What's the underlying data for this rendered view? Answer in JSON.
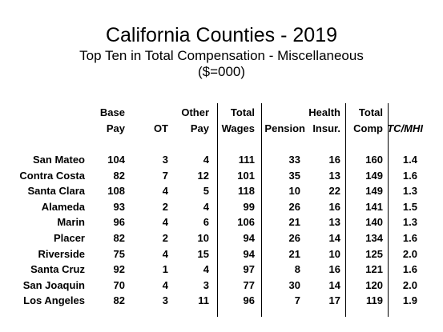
{
  "title": "California Counties - 2019",
  "subtitle": "Top Ten in Total Compensation - Miscellaneous",
  "units": "($=000)",
  "headers": {
    "base_line1": "Base",
    "base_line2": "Pay",
    "ot": "OT",
    "other_line1": "Other",
    "other_line2": "Pay",
    "wages_line1": "Total",
    "wages_line2": "Wages",
    "pension": "Pension",
    "health_line1": "Health",
    "health_line2": "Insur.",
    "comp_line1": "Total",
    "comp_line2": "Comp",
    "tcmhi": "TC/MHI"
  },
  "rows": [
    {
      "county": "San Mateo",
      "base": "104",
      "ot": "3",
      "other": "4",
      "wages": "111",
      "pension": "33",
      "health": "16",
      "comp": "160",
      "tcmhi": "1.4"
    },
    {
      "county": "Contra Costa",
      "base": "82",
      "ot": "7",
      "other": "12",
      "wages": "101",
      "pension": "35",
      "health": "13",
      "comp": "149",
      "tcmhi": "1.6"
    },
    {
      "county": "Santa Clara",
      "base": "108",
      "ot": "4",
      "other": "5",
      "wages": "118",
      "pension": "10",
      "health": "22",
      "comp": "149",
      "tcmhi": "1.3"
    },
    {
      "county": "Alameda",
      "base": "93",
      "ot": "2",
      "other": "4",
      "wages": "99",
      "pension": "26",
      "health": "16",
      "comp": "141",
      "tcmhi": "1.5"
    },
    {
      "county": "Marin",
      "base": "96",
      "ot": "4",
      "other": "6",
      "wages": "106",
      "pension": "21",
      "health": "13",
      "comp": "140",
      "tcmhi": "1.3"
    },
    {
      "county": "Placer",
      "base": "82",
      "ot": "2",
      "other": "10",
      "wages": "94",
      "pension": "26",
      "health": "14",
      "comp": "134",
      "tcmhi": "1.6"
    },
    {
      "county": "Riverside",
      "base": "75",
      "ot": "4",
      "other": "15",
      "wages": "94",
      "pension": "21",
      "health": "10",
      "comp": "125",
      "tcmhi": "2.0"
    },
    {
      "county": "Santa Cruz",
      "base": "92",
      "ot": "1",
      "other": "4",
      "wages": "97",
      "pension": "8",
      "health": "16",
      "comp": "121",
      "tcmhi": "1.6"
    },
    {
      "county": "San Joaquin",
      "base": "70",
      "ot": "4",
      "other": "3",
      "wages": "77",
      "pension": "30",
      "health": "14",
      "comp": "120",
      "tcmhi": "2.0"
    },
    {
      "county": "Los Angeles",
      "base": "82",
      "ot": "3",
      "other": "11",
      "wages": "96",
      "pension": "7",
      "health": "17",
      "comp": "119",
      "tcmhi": "1.9"
    }
  ]
}
